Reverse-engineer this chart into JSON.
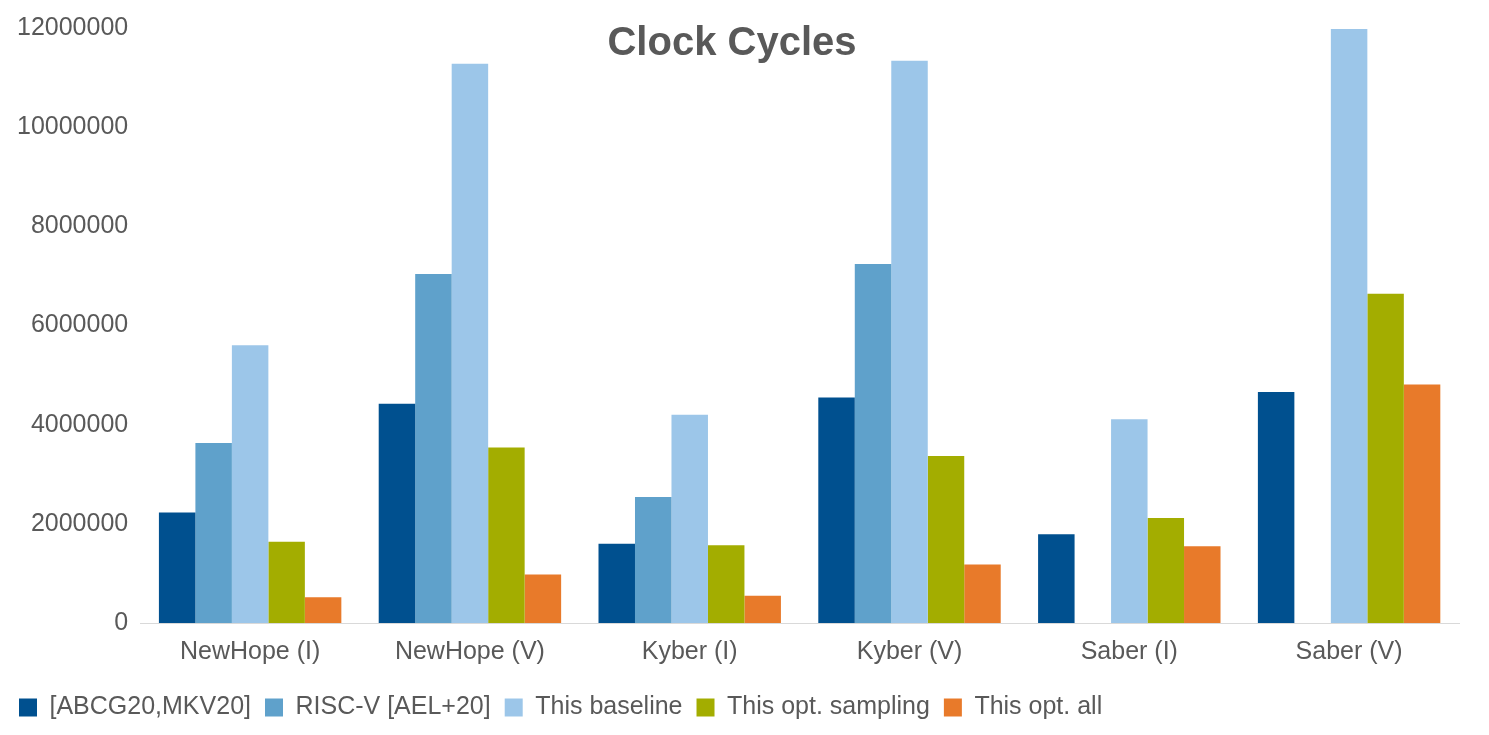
{
  "chart_data": {
    "type": "bar",
    "title": "Clock Cycles",
    "categories": [
      "NewHope (I)",
      "NewHope (V)",
      "Kyber (I)",
      "Kyber (V)",
      "Saber (I)",
      "Saber (V)"
    ],
    "series": [
      {
        "name": "[ABCG20,MKV20]",
        "color": "#00508f",
        "values": [
          2230000,
          4420000,
          1600000,
          4550000,
          1790000,
          4660000
        ]
      },
      {
        "name": "RISC-V [AEL+20]",
        "color": "#5fa1cb",
        "values": [
          3630000,
          7040000,
          2540000,
          7240000,
          null,
          null
        ]
      },
      {
        "name": "This baseline",
        "color": "#9cc6e9",
        "values": [
          5600000,
          11280000,
          4200000,
          11340000,
          4110000,
          11980000
        ]
      },
      {
        "name": "This opt. sampling",
        "color": "#a3ad00",
        "values": [
          1640000,
          3540000,
          1570000,
          3370000,
          2120000,
          6640000
        ]
      },
      {
        "name": "This opt. all",
        "color": "#e87a2a",
        "values": [
          520000,
          980000,
          550000,
          1180000,
          1550000,
          4810000
        ]
      }
    ],
    "ylim": [
      0,
      12000000
    ],
    "yticks": [
      0,
      2000000,
      4000000,
      6000000,
      8000000,
      10000000,
      12000000
    ],
    "grid": false,
    "legend": "bottom"
  }
}
